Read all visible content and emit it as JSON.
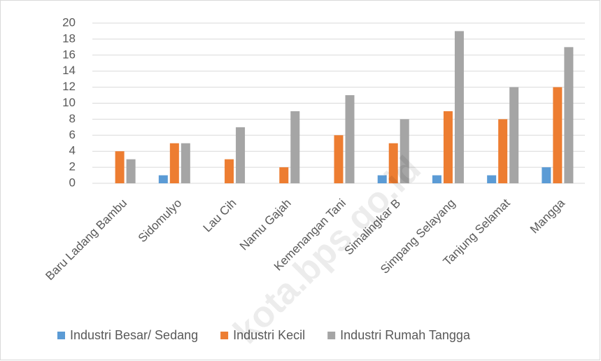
{
  "chart_data": {
    "type": "bar",
    "categories": [
      "Baru Ladang Bambu",
      "Sidomulyo",
      "Lau Cih",
      "Namu Gajah",
      "Kemenangan Tani",
      "Simalingkar B",
      "Simpang Selayang",
      "Tanjung Selamat",
      "Mangga"
    ],
    "series": [
      {
        "name": "Industri Besar/ Sedang",
        "color": "#5b9bd5",
        "values": [
          0,
          1,
          0,
          0,
          0,
          1,
          1,
          1,
          2
        ]
      },
      {
        "name": "Industri Kecil",
        "color": "#ed7d31",
        "values": [
          4,
          5,
          3,
          2,
          6,
          5,
          9,
          8,
          12
        ]
      },
      {
        "name": "Industri Rumah Tangga",
        "color": "#a5a5a5",
        "values": [
          3,
          5,
          7,
          9,
          11,
          8,
          19,
          12,
          17
        ]
      }
    ],
    "ylim": [
      0,
      20
    ],
    "yticks": [
      0,
      2,
      4,
      6,
      8,
      10,
      12,
      14,
      16,
      18,
      20
    ],
    "grid": true,
    "legend": "bottom",
    "watermark": "kota.bps.go.id"
  }
}
